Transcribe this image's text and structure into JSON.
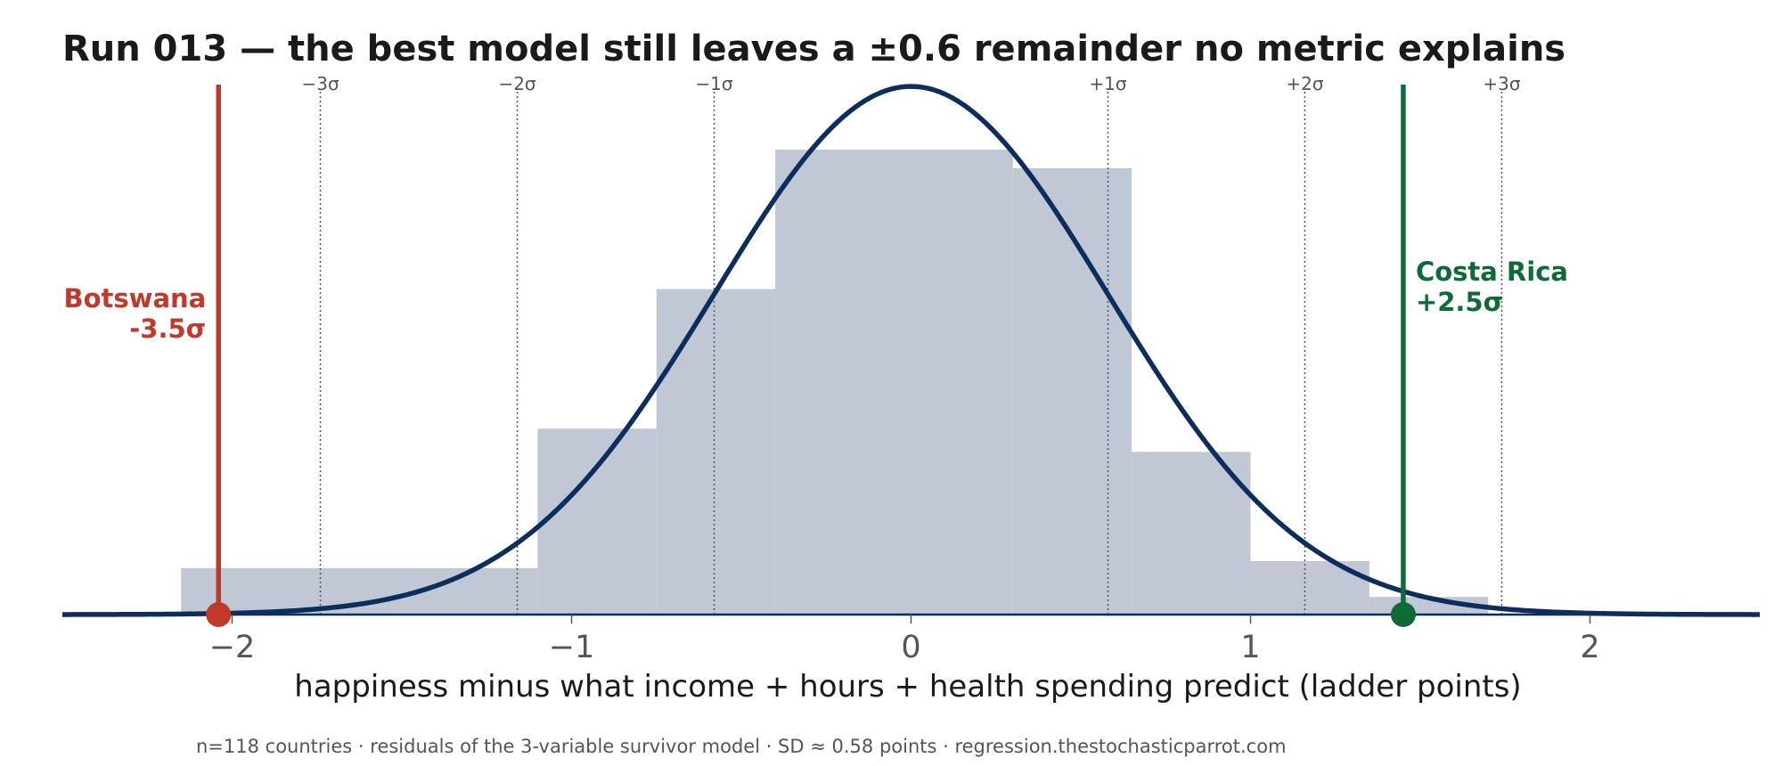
{
  "title": "Run 013 — the best model still leaves a ±0.6 remainder no metric explains",
  "footnote": "n=118 countries · residuals of the 3-variable survivor model · SD ≈ 0.58 points · regression.thestochasticparrot.com",
  "chart_data": {
    "type": "histogram",
    "title": "Run 013 — the best model still leaves a ±0.6 remainder no metric explains",
    "xlabel": "happiness minus what income + hours + health spending predict  (ladder points)",
    "ylabel": "",
    "xlim": [
      -2.5,
      2.5
    ],
    "x_ticks": [
      -2,
      -1,
      0,
      1,
      2
    ],
    "x_tick_labels": [
      "−2",
      "−1",
      "0",
      "1",
      "2"
    ],
    "bins": [
      {
        "x0": -2.15,
        "x1": -1.1,
        "value": 1
      },
      {
        "x0": -1.1,
        "x1": -0.75,
        "value": 4
      },
      {
        "x0": -0.75,
        "x1": -0.4,
        "value": 7
      },
      {
        "x0": -0.4,
        "x1": 0.3,
        "value": 10
      },
      {
        "x0": 0.3,
        "x1": 0.65,
        "value": 9.6
      },
      {
        "x0": 0.65,
        "x1": 1.0,
        "value": 3.5
      },
      {
        "x0": 1.0,
        "x1": 1.35,
        "value": 1.15
      },
      {
        "x0": 1.35,
        "x1": 1.7,
        "value": 0.38
      }
    ],
    "normal_curve": {
      "mean": 0,
      "sd": 0.58
    },
    "sigma_lines": [
      {
        "x": -1.74,
        "label": "−3σ"
      },
      {
        "x": -1.16,
        "label": "−2σ"
      },
      {
        "x": -0.58,
        "label": "−1σ"
      },
      {
        "x": 0.58,
        "label": "+1σ"
      },
      {
        "x": 1.16,
        "label": "+2σ"
      },
      {
        "x": 1.74,
        "label": "+3σ"
      }
    ],
    "highlights": [
      {
        "name": "Botswana",
        "sigma_label": "-3.5σ",
        "x": -2.04,
        "color": "#c0392b"
      },
      {
        "name": "Costa Rica",
        "sigma_label": "+2.5σ",
        "x": 1.45,
        "color": "#0e6b38"
      }
    ],
    "colors": {
      "bars": "#c1c8d5",
      "curve": "#0d2d5c",
      "axis": "#0d2d5c",
      "sigma_lines": "#555555"
    },
    "grid": false,
    "legend": "none"
  }
}
